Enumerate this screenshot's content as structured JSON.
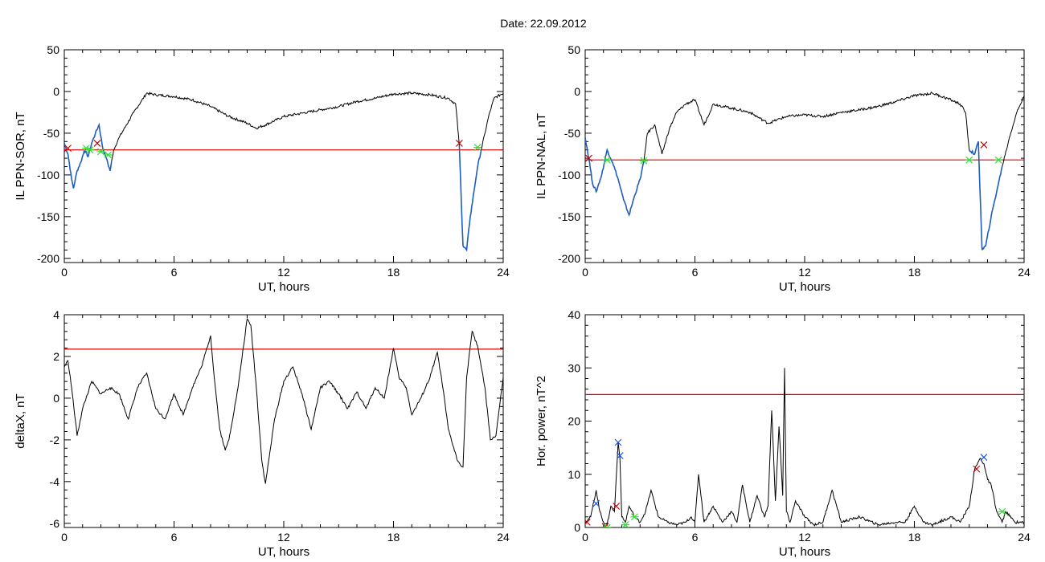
{
  "title": "Date:  22.09.2012",
  "colors": {
    "trace": "#000000",
    "selected_trace": "#1f5fbf",
    "threshold": "#e00000",
    "red_marker": "#cc0000",
    "green_marker": "#33dd33",
    "blue_marker": "#2255dd"
  },
  "chart_data": [
    {
      "id": "il-ppn-sor",
      "type": "line",
      "xlabel": "UT, hours",
      "ylabel": "IL PPN-SOR, nT",
      "xlim": [
        0,
        24
      ],
      "ylim": [
        -205,
        50
      ],
      "xticks": [
        0,
        6,
        12,
        18,
        24
      ],
      "yticks": [
        -200,
        -150,
        -100,
        -50,
        0,
        50
      ],
      "threshold": -70,
      "highlight_ranges": [
        [
          0,
          2.6
        ],
        [
          21.6,
          22.8
        ]
      ],
      "series": [
        {
          "x": [
            0,
            0.2,
            0.4,
            0.5,
            0.7,
            0.9,
            1.1,
            1.3,
            1.5,
            1.7,
            1.9,
            2.1,
            2.3,
            2.5,
            2.7,
            3.0,
            3.4,
            3.8,
            4.2,
            4.5,
            5.0,
            6.0,
            7.0,
            8.0,
            9.0,
            10.0,
            10.5,
            11.0,
            12.0,
            13.0,
            14.0,
            15.0,
            16.0,
            17.0,
            18.0,
            19.0,
            20.0,
            21.0,
            21.4,
            21.6,
            21.8,
            22.0,
            22.2,
            22.4,
            22.6,
            22.8,
            23.0,
            23.2,
            23.5,
            24.0
          ],
          "y": [
            -62,
            -75,
            -105,
            -116,
            -95,
            -85,
            -70,
            -78,
            -62,
            -50,
            -40,
            -68,
            -80,
            -95,
            -70,
            -55,
            -40,
            -25,
            -12,
            -2,
            -4,
            -6,
            -10,
            -18,
            -30,
            -38,
            -44,
            -40,
            -30,
            -26,
            -22,
            -18,
            -12,
            -8,
            -3,
            -2,
            -4,
            -8,
            -15,
            -65,
            -185,
            -190,
            -150,
            -120,
            -90,
            -70,
            -50,
            -30,
            -8,
            -2
          ]
        }
      ],
      "markers": {
        "red": [
          [
            0.2,
            -68
          ],
          [
            1.8,
            -62
          ],
          [
            21.6,
            -62
          ]
        ],
        "green": [
          [
            1.2,
            -68
          ],
          [
            1.4,
            -70
          ],
          [
            2.0,
            -72
          ],
          [
            2.4,
            -76
          ],
          [
            22.6,
            -67
          ]
        ]
      }
    },
    {
      "id": "il-ppn-nal",
      "type": "line",
      "xlabel": "UT, hours",
      "ylabel": "IL PPN-NAL, nT",
      "xlim": [
        0,
        24
      ],
      "ylim": [
        -205,
        50
      ],
      "xticks": [
        0,
        6,
        12,
        18,
        24
      ],
      "yticks": [
        -200,
        -150,
        -100,
        -50,
        0,
        50
      ],
      "threshold": -82,
      "highlight_ranges": [
        [
          0,
          3.2
        ],
        [
          21.0,
          22.8
        ]
      ],
      "series": [
        {
          "x": [
            0,
            0.2,
            0.4,
            0.6,
            0.9,
            1.2,
            1.5,
            1.8,
            2.1,
            2.4,
            2.7,
            3.0,
            3.2,
            3.4,
            3.8,
            4.2,
            4.6,
            5.0,
            5.5,
            6.0,
            6.5,
            7.0,
            8.0,
            9.0,
            10.0,
            11.0,
            12.0,
            13.0,
            14.0,
            15.0,
            16.0,
            17.0,
            18.0,
            19.0,
            20.0,
            20.5,
            20.8,
            21.0,
            21.3,
            21.5,
            21.7,
            21.9,
            22.2,
            22.5,
            22.8,
            23.2,
            23.6,
            24.0
          ],
          "y": [
            -55,
            -80,
            -110,
            -120,
            -100,
            -70,
            -85,
            -105,
            -130,
            -148,
            -125,
            -105,
            -85,
            -50,
            -40,
            -75,
            -45,
            -25,
            -15,
            -10,
            -40,
            -15,
            -20,
            -25,
            -38,
            -30,
            -28,
            -30,
            -25,
            -22,
            -18,
            -12,
            -5,
            -2,
            -10,
            -15,
            -25,
            -70,
            -75,
            -60,
            -190,
            -185,
            -150,
            -120,
            -90,
            -55,
            -25,
            -5
          ]
        }
      ],
      "markers": {
        "red": [
          [
            0.2,
            -80
          ],
          [
            21.8,
            -64
          ]
        ],
        "green": [
          [
            1.2,
            -82
          ],
          [
            3.2,
            -83
          ],
          [
            21.0,
            -82
          ],
          [
            22.6,
            -82
          ]
        ]
      }
    },
    {
      "id": "deltax",
      "type": "line",
      "xlabel": "UT, hours",
      "ylabel": "deltaX, nT",
      "xlim": [
        0,
        24
      ],
      "ylim": [
        -6.2,
        4
      ],
      "xticks": [
        0,
        6,
        12,
        18,
        24
      ],
      "yticks": [
        -6,
        -4,
        -2,
        0,
        2,
        4
      ],
      "threshold": 2.35,
      "series": [
        {
          "x": [
            0,
            0.2,
            0.4,
            0.7,
            1.0,
            1.5,
            2.0,
            2.5,
            3.0,
            3.5,
            4.0,
            4.5,
            5.0,
            5.5,
            6.0,
            6.5,
            7.0,
            7.5,
            8.0,
            8.2,
            8.5,
            8.8,
            9.0,
            9.5,
            9.8,
            10.0,
            10.2,
            10.5,
            10.8,
            11.0,
            11.5,
            12.0,
            12.5,
            13.0,
            13.5,
            14.0,
            14.5,
            15.0,
            15.5,
            16.0,
            16.5,
            17.0,
            17.5,
            18.0,
            18.3,
            18.7,
            19.0,
            19.5,
            20.0,
            20.4,
            20.7,
            21.0,
            21.5,
            21.8,
            22.0,
            22.3,
            22.6,
            23.0,
            23.3,
            23.6,
            24.0
          ],
          "y": [
            1.5,
            1.8,
            0.5,
            -1.8,
            -0.5,
            0.8,
            0.2,
            0.5,
            0.2,
            -1,
            0.5,
            1.2,
            -0.5,
            -1,
            0.2,
            -0.8,
            0.5,
            1.5,
            3.0,
            1.0,
            -1.5,
            -2.5,
            -2,
            0.5,
            2.5,
            3.8,
            3.5,
            0.5,
            -3.0,
            -4.1,
            -1.0,
            0.8,
            1.5,
            0.2,
            -1.5,
            0.5,
            0.8,
            0.2,
            -0.5,
            0.3,
            -0.5,
            0.5,
            0,
            2.4,
            1.0,
            0.5,
            -0.8,
            0,
            1.0,
            2.2,
            0.5,
            -1.5,
            -3.0,
            -3.3,
            1.0,
            3.2,
            2.5,
            0.5,
            -2.0,
            -1.8,
            1.0
          ]
        }
      ]
    },
    {
      "id": "hor-power",
      "type": "line",
      "xlabel": "UT, hours",
      "ylabel": "Hor. power, nT^2",
      "xlim": [
        0,
        24
      ],
      "ylim": [
        0,
        40
      ],
      "xticks": [
        0,
        6,
        12,
        18,
        24
      ],
      "yticks": [
        0,
        10,
        20,
        30,
        40
      ],
      "threshold": 25,
      "series": [
        {
          "x": [
            0,
            0.3,
            0.6,
            0.8,
            1.0,
            1.2,
            1.4,
            1.6,
            1.8,
            1.9,
            2.0,
            2.2,
            2.4,
            2.7,
            3.0,
            3.3,
            3.6,
            4.0,
            4.5,
            5.0,
            5.5,
            5.8,
            6.0,
            6.2,
            6.5,
            7.0,
            7.5,
            8.0,
            8.3,
            8.6,
            9.0,
            9.4,
            9.8,
            10.0,
            10.2,
            10.4,
            10.6,
            10.8,
            10.9,
            11.0,
            11.2,
            11.5,
            12.0,
            12.5,
            13.0,
            13.5,
            14.0,
            15.0,
            16.0,
            17.0,
            17.5,
            18.0,
            18.5,
            19.0,
            20.0,
            20.5,
            21.0,
            21.3,
            21.6,
            21.8,
            22.0,
            22.2,
            22.5,
            22.8,
            23.0,
            23.5,
            24.0
          ],
          "y": [
            1,
            2,
            7,
            3,
            1,
            0.5,
            4,
            3,
            16,
            13,
            2,
            1,
            4,
            2,
            1,
            3,
            7,
            2,
            1,
            0.5,
            1,
            2,
            1,
            10,
            1,
            4,
            1,
            3,
            1,
            8,
            1,
            6,
            2,
            4,
            22,
            5,
            19,
            6,
            30,
            3,
            1,
            5,
            2,
            0.5,
            1,
            7,
            1,
            2,
            0.5,
            1,
            1,
            4,
            1,
            0.5,
            2,
            1,
            4,
            11,
            13,
            12,
            9,
            8,
            3,
            1,
            3,
            1,
            1
          ]
        }
      ],
      "markers": {
        "red": [
          [
            0.1,
            1
          ],
          [
            1.1,
            0.2
          ],
          [
            1.7,
            4
          ],
          [
            21.4,
            11
          ]
        ],
        "green": [
          [
            1.2,
            0
          ],
          [
            2.2,
            0.5
          ],
          [
            2.7,
            2
          ],
          [
            22.8,
            3
          ]
        ],
        "blue": [
          [
            0.6,
            4.5
          ],
          [
            1.8,
            16
          ],
          [
            1.9,
            13.5
          ],
          [
            21.8,
            13.2
          ]
        ]
      }
    }
  ]
}
